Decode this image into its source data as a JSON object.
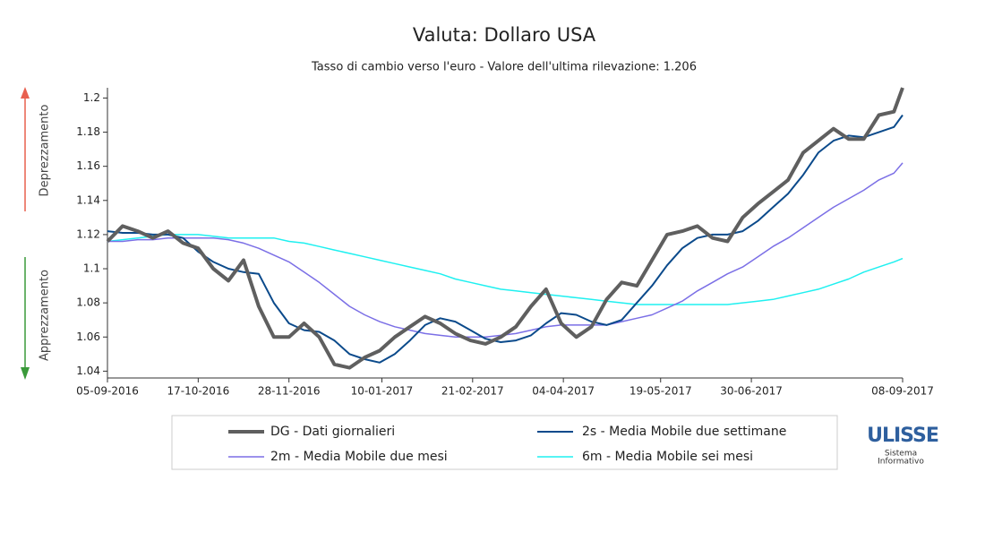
{
  "chart_data": {
    "type": "line",
    "title": "Valuta: Dollaro USA",
    "subtitle": "Tasso di cambio verso l'euro - Valore dell'ultima rilevazione: 1.206",
    "annotations": [
      "Deprezzamento",
      "Apprezzamento"
    ],
    "logo": {
      "name": "ULISSE",
      "lines": [
        "Sistema",
        "Informativo"
      ]
    },
    "x": [
      "05-09-2016",
      "12-09-2016",
      "19-09-2016",
      "26-09-2016",
      "03-10-2016",
      "10-10-2016",
      "17-10-2016",
      "24-10-2016",
      "31-10-2016",
      "07-11-2016",
      "14-11-2016",
      "21-11-2016",
      "28-11-2016",
      "05-12-2016",
      "12-12-2016",
      "19-12-2016",
      "26-12-2016",
      "02-01-2017",
      "09-01-2017",
      "16-01-2017",
      "23-01-2017",
      "30-01-2017",
      "06-02-2017",
      "13-02-2017",
      "20-02-2017",
      "27-02-2017",
      "06-03-2017",
      "13-03-2017",
      "20-03-2017",
      "27-03-2017",
      "03-04-2017",
      "10-04-2017",
      "17-04-2017",
      "24-04-2017",
      "01-05-2017",
      "08-05-2017",
      "15-05-2017",
      "22-05-2017",
      "29-05-2017",
      "05-06-2017",
      "12-06-2017",
      "19-06-2017",
      "26-06-2017",
      "03-07-2017",
      "10-07-2017",
      "17-07-2017",
      "24-07-2017",
      "31-07-2017",
      "07-08-2017",
      "14-08-2017",
      "21-08-2017",
      "28-08-2017",
      "04-09-2017",
      "08-09-2017"
    ],
    "series": [
      {
        "name": "DG - Dati giornalieri",
        "color": "#5f5f5f",
        "values": [
          1.116,
          1.125,
          1.122,
          1.118,
          1.122,
          1.115,
          1.112,
          1.1,
          1.093,
          1.105,
          1.078,
          1.06,
          1.06,
          1.068,
          1.06,
          1.044,
          1.042,
          1.048,
          1.052,
          1.06,
          1.066,
          1.072,
          1.068,
          1.062,
          1.058,
          1.056,
          1.06,
          1.066,
          1.078,
          1.088,
          1.068,
          1.06,
          1.066,
          1.082,
          1.092,
          1.09,
          1.105,
          1.12,
          1.122,
          1.125,
          1.118,
          1.116,
          1.13,
          1.138,
          1.145,
          1.152,
          1.168,
          1.175,
          1.182,
          1.176,
          1.176,
          1.19,
          1.192,
          1.206
        ]
      },
      {
        "name": "2s - Media Mobile due settimane",
        "color": "#0b4a8b",
        "values": [
          1.122,
          1.121,
          1.121,
          1.12,
          1.12,
          1.118,
          1.11,
          1.104,
          1.1,
          1.098,
          1.097,
          1.08,
          1.068,
          1.064,
          1.063,
          1.058,
          1.05,
          1.047,
          1.045,
          1.05,
          1.058,
          1.067,
          1.071,
          1.069,
          1.064,
          1.059,
          1.057,
          1.058,
          1.061,
          1.068,
          1.074,
          1.073,
          1.069,
          1.067,
          1.07,
          1.08,
          1.09,
          1.102,
          1.112,
          1.118,
          1.12,
          1.12,
          1.122,
          1.128,
          1.136,
          1.144,
          1.155,
          1.168,
          1.175,
          1.178,
          1.177,
          1.18,
          1.183,
          1.19
        ]
      },
      {
        "name": "2m - Media Mobile due mesi",
        "color": "#7b6fe6",
        "values": [
          1.116,
          1.116,
          1.117,
          1.117,
          1.118,
          1.118,
          1.118,
          1.118,
          1.117,
          1.115,
          1.112,
          1.108,
          1.104,
          1.098,
          1.092,
          1.085,
          1.078,
          1.073,
          1.069,
          1.066,
          1.064,
          1.062,
          1.061,
          1.06,
          1.06,
          1.06,
          1.061,
          1.062,
          1.064,
          1.066,
          1.067,
          1.067,
          1.067,
          1.067,
          1.069,
          1.071,
          1.073,
          1.077,
          1.081,
          1.087,
          1.092,
          1.097,
          1.101,
          1.107,
          1.113,
          1.118,
          1.124,
          1.13,
          1.136,
          1.141,
          1.146,
          1.152,
          1.156,
          1.162
        ]
      },
      {
        "name": "6m - Media Mobile sei mesi",
        "color": "#1ff0f0",
        "values": [
          1.116,
          1.117,
          1.118,
          1.119,
          1.12,
          1.12,
          1.12,
          1.119,
          1.118,
          1.118,
          1.118,
          1.118,
          1.116,
          1.115,
          1.113,
          1.111,
          1.109,
          1.107,
          1.105,
          1.103,
          1.101,
          1.099,
          1.097,
          1.094,
          1.092,
          1.09,
          1.088,
          1.087,
          1.086,
          1.085,
          1.084,
          1.083,
          1.082,
          1.081,
          1.08,
          1.079,
          1.079,
          1.079,
          1.079,
          1.079,
          1.079,
          1.079,
          1.08,
          1.081,
          1.082,
          1.084,
          1.086,
          1.088,
          1.091,
          1.094,
          1.098,
          1.101,
          1.104,
          1.106
        ]
      }
    ],
    "xlim": [
      "05-09-2016",
      "08-09-2017"
    ],
    "xticks": [
      "05-09-2016",
      "17-10-2016",
      "28-11-2016",
      "10-01-2017",
      "21-02-2017",
      "04-04-2017",
      "19-05-2017",
      "30-06-2017",
      "08-09-2017"
    ],
    "ylim": [
      1.036,
      1.206
    ],
    "yticks": [
      1.04,
      1.06,
      1.08,
      1.1,
      1.12,
      1.14,
      1.16,
      1.18,
      1.2
    ],
    "grid": false,
    "legend": "bottom"
  }
}
